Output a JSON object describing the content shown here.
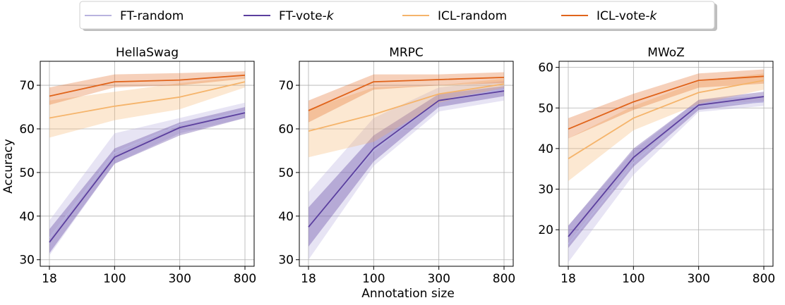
{
  "legend": {
    "placement": "top-center",
    "items": [
      {
        "pre": "FT-random",
        "ital": "",
        "color": "#b9b3df"
      },
      {
        "pre": "FT-vote-",
        "ital": "k",
        "color": "#5b3f9e"
      },
      {
        "pre": "ICL-random",
        "ital": "",
        "color": "#f5b46b"
      },
      {
        "pre": "ICL-vote-",
        "ital": "k",
        "color": "#e0641b"
      }
    ]
  },
  "shared_xlabel": "Annotation size",
  "shared_ylabel": "Accuracy",
  "chart_data": [
    {
      "type": "line",
      "title": "HellaSwag",
      "categories": [
        "18",
        "100",
        "300",
        "800"
      ],
      "yticks": [
        30,
        40,
        50,
        60,
        70
      ],
      "ylim": [
        28.5,
        75.5
      ],
      "grid": true,
      "series": [
        {
          "name": "FT-random",
          "values": [
            35.0,
            54.5,
            61.0,
            64.0
          ],
          "band": [
            [
              31.0,
              39.0
            ],
            [
              52.0,
              59.0
            ],
            [
              59.0,
              62.5
            ],
            [
              62.5,
              66.0
            ]
          ]
        },
        {
          "name": "FT-vote-k",
          "values": [
            34.0,
            53.5,
            60.3,
            63.7
          ],
          "band": [
            [
              31.5,
              37.0
            ],
            [
              52.0,
              55.5
            ],
            [
              58.5,
              61.5
            ],
            [
              62.5,
              65.0
            ]
          ]
        },
        {
          "name": "ICL-random",
          "values": [
            62.5,
            65.2,
            67.3,
            70.8
          ],
          "band": [
            [
              58.0,
              66.5
            ],
            [
              62.0,
              68.5
            ],
            [
              64.5,
              70.5
            ],
            [
              69.5,
              72.0
            ]
          ]
        },
        {
          "name": "ICL-vote-k",
          "values": [
            67.5,
            70.8,
            71.2,
            72.3
          ],
          "band": [
            [
              65.5,
              69.5
            ],
            [
              69.5,
              72.5
            ],
            [
              70.0,
              72.8
            ],
            [
              71.5,
              73.2
            ]
          ]
        }
      ]
    },
    {
      "type": "line",
      "title": "MRPC",
      "categories": [
        "18",
        "100",
        "300",
        "800"
      ],
      "yticks": [
        30,
        40,
        50,
        60,
        70
      ],
      "ylim": [
        28.5,
        75.5
      ],
      "grid": true,
      "series": [
        {
          "name": "FT-random",
          "values": [
            37.5,
            55.0,
            66.5,
            69.0
          ],
          "band": [
            [
              30.0,
              45.5
            ],
            [
              51.5,
              62.5
            ],
            [
              64.0,
              69.5
            ],
            [
              66.5,
              71.0
            ]
          ]
        },
        {
          "name": "FT-vote-k",
          "values": [
            37.5,
            55.5,
            66.5,
            68.7
          ],
          "band": [
            [
              33.0,
              42.0
            ],
            [
              52.5,
              58.5
            ],
            [
              65.0,
              68.0
            ],
            [
              67.5,
              69.8
            ]
          ]
        },
        {
          "name": "ICL-random",
          "values": [
            59.5,
            63.3,
            68.0,
            70.3
          ],
          "band": [
            [
              53.5,
              64.5
            ],
            [
              57.0,
              69.5
            ],
            [
              66.0,
              70.0
            ],
            [
              69.5,
              71.5
            ]
          ]
        },
        {
          "name": "ICL-vote-k",
          "values": [
            64.2,
            70.8,
            71.3,
            71.8
          ],
          "band": [
            [
              61.5,
              66.5
            ],
            [
              69.0,
              72.5
            ],
            [
              70.0,
              72.5
            ],
            [
              70.5,
              73.0
            ]
          ]
        }
      ]
    },
    {
      "type": "line",
      "title": "MWoZ",
      "categories": [
        "18",
        "100",
        "300",
        "800"
      ],
      "yticks": [
        20,
        30,
        40,
        50,
        60
      ],
      "ylim": [
        11.0,
        61.5
      ],
      "grid": true,
      "series": [
        {
          "name": "FT-random",
          "values": [
            16.5,
            36.5,
            50.5,
            51.5
          ],
          "band": [
            [
              12.0,
              21.0
            ],
            [
              33.5,
              39.5
            ],
            [
              49.0,
              52.0
            ],
            [
              50.5,
              53.0
            ]
          ]
        },
        {
          "name": "FT-vote-k",
          "values": [
            18.3,
            37.8,
            50.7,
            52.8
          ],
          "band": [
            [
              15.5,
              21.0
            ],
            [
              35.5,
              40.0
            ],
            [
              49.5,
              52.0
            ],
            [
              51.5,
              54.0
            ]
          ]
        },
        {
          "name": "ICL-random",
          "values": [
            37.5,
            47.5,
            53.8,
            56.8
          ],
          "band": [
            [
              32.0,
              42.5
            ],
            [
              44.5,
              50.5
            ],
            [
              51.0,
              56.5
            ],
            [
              54.5,
              58.5
            ]
          ]
        },
        {
          "name": "ICL-vote-k",
          "values": [
            44.8,
            51.5,
            56.8,
            57.8
          ],
          "band": [
            [
              42.5,
              47.5
            ],
            [
              49.5,
              53.5
            ],
            [
              55.0,
              58.5
            ],
            [
              56.0,
              59.5
            ]
          ]
        }
      ]
    }
  ]
}
